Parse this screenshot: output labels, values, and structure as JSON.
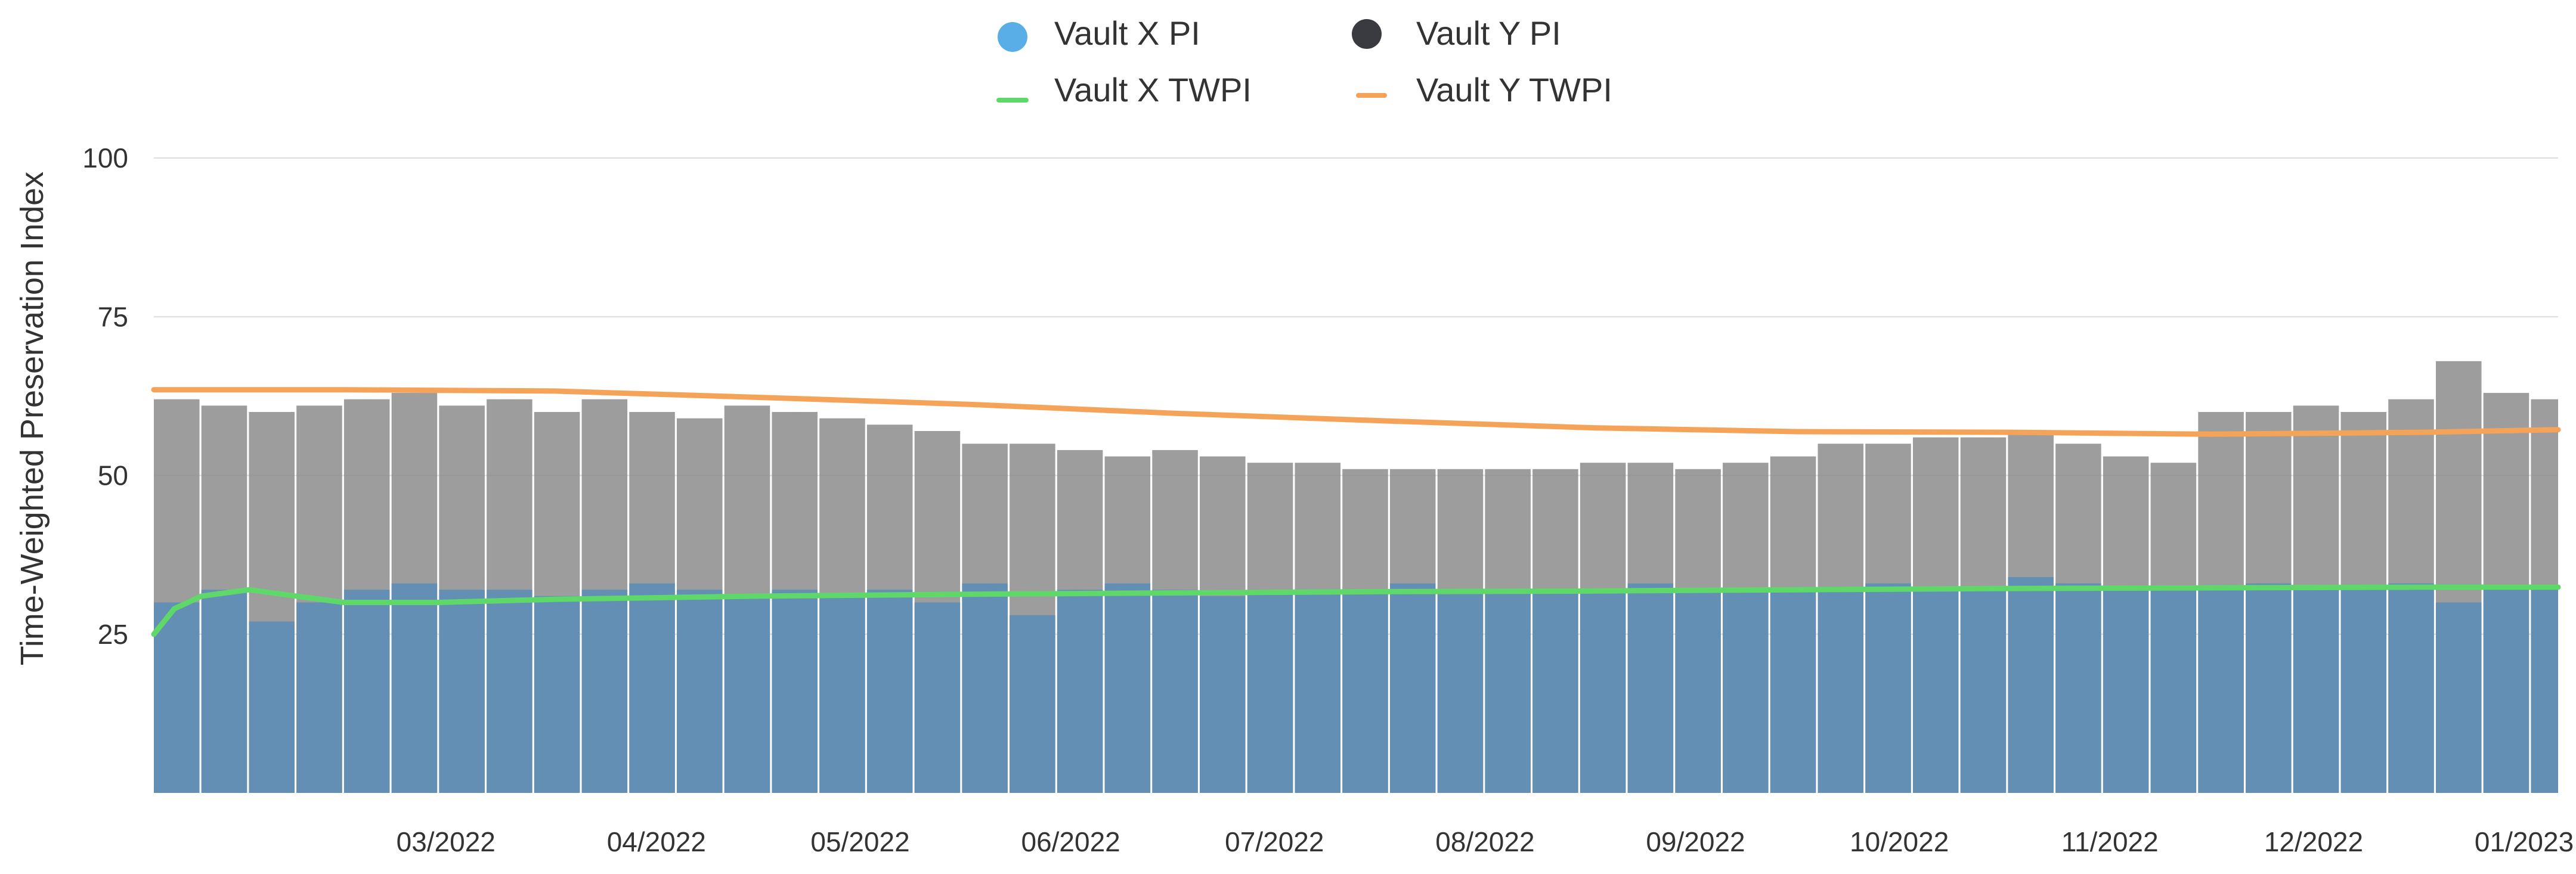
{
  "chart_data": {
    "type": "bar",
    "ylabel": "Time-Weighted Preservation Index",
    "xlabel": "",
    "ylim": [
      0,
      100
    ],
    "y_ticks": [
      25,
      50,
      75,
      100
    ],
    "y_tick_labels": [
      "25",
      "50",
      "75",
      "100"
    ],
    "grid": "horizontal",
    "legend_position": "top-center",
    "x_tick_labels": [
      "03/2022",
      "04/2022",
      "05/2022",
      "06/2022",
      "07/2022",
      "08/2022",
      "09/2022",
      "10/2022",
      "11/2022",
      "12/2022",
      "01/2023"
    ],
    "x_tick_dates": [
      "2022-03-01",
      "2022-04-01",
      "2022-05-01",
      "2022-06-01",
      "2022-07-01",
      "2022-08-01",
      "2022-09-01",
      "2022-10-01",
      "2022-11-01",
      "2022-12-01",
      "2023-01-01"
    ],
    "x_range": [
      "2022-02-01",
      "2023-01-21"
    ],
    "series": [
      {
        "name": "Vault X PI",
        "type": "bar",
        "color": "#5b8db8",
        "x": [
          "2022-02-01",
          "2022-02-08",
          "2022-02-15",
          "2022-02-22",
          "2022-03-01",
          "2022-03-08",
          "2022-03-15",
          "2022-03-22",
          "2022-03-29",
          "2022-04-05",
          "2022-04-12",
          "2022-04-19",
          "2022-04-26",
          "2022-05-03",
          "2022-05-10",
          "2022-05-17",
          "2022-05-24",
          "2022-05-31",
          "2022-06-07",
          "2022-06-14",
          "2022-06-21",
          "2022-06-28",
          "2022-07-05",
          "2022-07-12",
          "2022-07-19",
          "2022-07-26",
          "2022-08-02",
          "2022-08-09",
          "2022-08-16",
          "2022-08-23",
          "2022-08-30",
          "2022-09-06",
          "2022-09-13",
          "2022-09-20",
          "2022-09-27",
          "2022-10-04",
          "2022-10-11",
          "2022-10-18",
          "2022-10-25",
          "2022-11-01",
          "2022-11-08",
          "2022-11-15",
          "2022-11-22",
          "2022-11-29",
          "2022-12-06",
          "2022-12-13",
          "2022-12-20",
          "2022-12-27",
          "2023-01-03",
          "2023-01-10",
          "2023-01-17"
        ],
        "values": [
          30,
          32,
          27,
          30,
          32,
          33,
          32,
          32,
          31,
          32,
          33,
          32,
          31,
          32,
          31,
          32,
          30,
          33,
          28,
          32,
          33,
          32,
          31,
          32,
          32,
          32,
          33,
          32,
          32,
          32,
          32,
          33,
          32,
          32,
          32,
          32,
          33,
          32,
          32,
          34,
          33,
          32,
          32,
          32,
          33,
          32,
          32,
          33,
          30,
          32,
          32
        ]
      },
      {
        "name": "Vault Y PI",
        "type": "bar",
        "color": "#8c8c8c",
        "x": [
          "2022-02-01",
          "2022-02-08",
          "2022-02-15",
          "2022-02-22",
          "2022-03-01",
          "2022-03-08",
          "2022-03-15",
          "2022-03-22",
          "2022-03-29",
          "2022-04-05",
          "2022-04-12",
          "2022-04-19",
          "2022-04-26",
          "2022-05-03",
          "2022-05-10",
          "2022-05-17",
          "2022-05-24",
          "2022-05-31",
          "2022-06-07",
          "2022-06-14",
          "2022-06-21",
          "2022-06-28",
          "2022-07-05",
          "2022-07-12",
          "2022-07-19",
          "2022-07-26",
          "2022-08-02",
          "2022-08-09",
          "2022-08-16",
          "2022-08-23",
          "2022-08-30",
          "2022-09-06",
          "2022-09-13",
          "2022-09-20",
          "2022-09-27",
          "2022-10-04",
          "2022-10-11",
          "2022-10-18",
          "2022-10-25",
          "2022-11-01",
          "2022-11-08",
          "2022-11-15",
          "2022-11-22",
          "2022-11-29",
          "2022-12-06",
          "2022-12-13",
          "2022-12-20",
          "2022-12-27",
          "2023-01-03",
          "2023-01-10",
          "2023-01-17"
        ],
        "values": [
          62,
          61,
          60,
          61,
          62,
          63,
          61,
          62,
          60,
          62,
          60,
          59,
          61,
          60,
          59,
          58,
          57,
          55,
          55,
          54,
          53,
          54,
          53,
          52,
          52,
          51,
          51,
          51,
          51,
          51,
          52,
          52,
          51,
          52,
          53,
          55,
          55,
          56,
          56,
          57,
          55,
          53,
          52,
          60,
          60,
          61,
          60,
          62,
          68,
          63,
          62
        ]
      },
      {
        "name": "Vault X TWPI",
        "type": "line",
        "color": "#5fd86a",
        "x": [
          "2022-02-01",
          "2022-02-04",
          "2022-02-08",
          "2022-02-15",
          "2022-02-22",
          "2022-03-01",
          "2022-03-15",
          "2022-04-01",
          "2022-05-01",
          "2022-06-01",
          "2022-07-01",
          "2022-08-01",
          "2022-09-01",
          "2022-10-01",
          "2022-11-01",
          "2022-12-01",
          "2023-01-01",
          "2023-01-21"
        ],
        "values": [
          25,
          29,
          31,
          32,
          31,
          30,
          30,
          30.5,
          31,
          31.3,
          31.5,
          31.7,
          31.8,
          32,
          32.2,
          32.3,
          32.4,
          32.4
        ]
      },
      {
        "name": "Vault Y TWPI",
        "type": "line",
        "color": "#f6a35a",
        "x": [
          "2022-02-01",
          "2022-03-01",
          "2022-04-01",
          "2022-05-01",
          "2022-06-01",
          "2022-07-01",
          "2022-08-01",
          "2022-09-01",
          "2022-10-01",
          "2022-11-01",
          "2022-12-01",
          "2023-01-01",
          "2023-01-21"
        ],
        "values": [
          63.5,
          63.5,
          63.3,
          62.3,
          61.2,
          59.8,
          58.6,
          57.5,
          56.9,
          56.8,
          56.5,
          56.8,
          57.2
        ]
      }
    ]
  },
  "legend": {
    "items": [
      {
        "label": "Vault X PI",
        "marker": "circle",
        "color": "#5aaee8"
      },
      {
        "label": "Vault Y PI",
        "marker": "circle",
        "color": "#3a3b40"
      },
      {
        "label": "Vault X TWPI",
        "marker": "line",
        "color": "#5fd86a"
      },
      {
        "label": "Vault Y TWPI",
        "marker": "line",
        "color": "#f6a35a"
      }
    ]
  },
  "colors": {
    "gridline": "#dddddd",
    "vault_x_bar": "#5b8db8",
    "vault_y_bar": "#8c8c8c"
  }
}
